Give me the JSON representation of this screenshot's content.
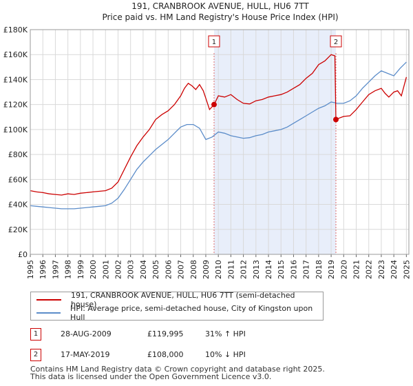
{
  "chart_data": {
    "type": "line",
    "title": "191, CRANBROOK AVENUE, HULL, HU6 7TT",
    "subtitle": "Price paid vs. HM Land Registry's House Price Index (HPI)",
    "xlim": [
      1995,
      2025.2
    ],
    "ylim": [
      0,
      180000
    ],
    "y_ticks": [
      0,
      20000,
      40000,
      60000,
      80000,
      100000,
      120000,
      140000,
      160000,
      180000
    ],
    "y_tick_labels": [
      "£0",
      "£20K",
      "£40K",
      "£60K",
      "£80K",
      "£100K",
      "£120K",
      "£140K",
      "£160K",
      "£180K"
    ],
    "x_tick_labels": [
      "1995",
      "1996",
      "1997",
      "1998",
      "1999",
      "2000",
      "2001",
      "2002",
      "2003",
      "2004",
      "2005",
      "2006",
      "2007",
      "2008",
      "2009",
      "2010",
      "2011",
      "2012",
      "2013",
      "2014",
      "2015",
      "2016",
      "2017",
      "2018",
      "2019",
      "2020",
      "2021",
      "2022",
      "2023",
      "2024",
      "2025"
    ],
    "shaded_region": [
      2009.66,
      2019.38
    ],
    "series": [
      {
        "name": "191, CRANBROOK AVENUE, HULL, HU6 7TT (semi-detached house)",
        "color": "#cc0000",
        "x": [
          1995.0,
          1995.5,
          1996.0,
          1996.5,
          1997.0,
          1997.5,
          1998.0,
          1998.5,
          1999.0,
          1999.5,
          2000.0,
          2000.5,
          2001.0,
          2001.5,
          2002.0,
          2002.5,
          2003.0,
          2003.5,
          2004.0,
          2004.5,
          2005.0,
          2005.5,
          2006.0,
          2006.5,
          2007.0,
          2007.3,
          2007.6,
          2007.9,
          2008.2,
          2008.5,
          2008.8,
          2009.0,
          2009.3,
          2009.66,
          2010.0,
          2010.5,
          2011.0,
          2011.5,
          2012.0,
          2012.5,
          2013.0,
          2013.5,
          2014.0,
          2014.5,
          2015.0,
          2015.5,
          2016.0,
          2016.5,
          2017.0,
          2017.5,
          2018.0,
          2018.5,
          2019.0,
          2019.3,
          2019.38,
          2019.6,
          2020.0,
          2020.5,
          2021.0,
          2021.5,
          2022.0,
          2022.5,
          2023.0,
          2023.3,
          2023.6,
          2024.0,
          2024.3,
          2024.6,
          2025.0
        ],
        "values": [
          51000,
          50000,
          49500,
          48500,
          48000,
          47500,
          48500,
          48000,
          49000,
          49500,
          50000,
          50500,
          51000,
          53000,
          58000,
          68000,
          78000,
          87000,
          94000,
          100000,
          108000,
          112000,
          115000,
          120000,
          127000,
          133000,
          137000,
          135000,
          132000,
          136000,
          131000,
          125000,
          116000,
          119995,
          127000,
          126000,
          128000,
          124000,
          121000,
          120500,
          123000,
          124000,
          126000,
          127000,
          128000,
          130000,
          133000,
          136000,
          141000,
          145000,
          152000,
          155000,
          160000,
          159000,
          108000,
          109000,
          110500,
          111000,
          116000,
          122000,
          128000,
          131000,
          133000,
          129000,
          126000,
          130000,
          131000,
          127000,
          142000
        ]
      },
      {
        "name": "HPI: Average price, semi-detached house, City of Kingston upon Hull",
        "color": "#5b8cc9",
        "x": [
          1995.0,
          1995.5,
          1996.0,
          1996.5,
          1997.0,
          1997.5,
          1998.0,
          1998.5,
          1999.0,
          1999.5,
          2000.0,
          2000.5,
          2001.0,
          2001.5,
          2002.0,
          2002.5,
          2003.0,
          2003.5,
          2004.0,
          2004.5,
          2005.0,
          2005.5,
          2006.0,
          2006.5,
          2007.0,
          2007.5,
          2008.0,
          2008.5,
          2009.0,
          2009.5,
          2010.0,
          2010.5,
          2011.0,
          2011.5,
          2012.0,
          2012.5,
          2013.0,
          2013.5,
          2014.0,
          2014.5,
          2015.0,
          2015.5,
          2016.0,
          2016.5,
          2017.0,
          2017.5,
          2018.0,
          2018.5,
          2019.0,
          2019.5,
          2020.0,
          2020.5,
          2021.0,
          2021.5,
          2022.0,
          2022.5,
          2023.0,
          2023.5,
          2024.0,
          2024.5,
          2025.0
        ],
        "values": [
          39000,
          38500,
          38000,
          37500,
          37000,
          36500,
          36500,
          36500,
          37000,
          37500,
          38000,
          38500,
          39000,
          41000,
          45000,
          52000,
          60000,
          68000,
          74000,
          79000,
          84000,
          88000,
          92000,
          97000,
          102000,
          104000,
          104000,
          101000,
          92000,
          94000,
          98000,
          97000,
          95000,
          94000,
          93000,
          93500,
          95000,
          96000,
          98000,
          99000,
          100000,
          102000,
          105000,
          108000,
          111000,
          114000,
          117000,
          119000,
          122000,
          121000,
          121000,
          123000,
          127000,
          133000,
          138000,
          143000,
          147000,
          145000,
          143000,
          149000,
          154000
        ]
      }
    ],
    "markers": [
      {
        "label": "1",
        "x": 2009.66,
        "y": 119995
      },
      {
        "label": "2",
        "x": 2019.38,
        "y": 108000
      }
    ]
  },
  "transactions": [
    {
      "num": "1",
      "date": "28-AUG-2009",
      "price": "£119,995",
      "change": "31% ↑ HPI"
    },
    {
      "num": "2",
      "date": "17-MAY-2019",
      "price": "£108,000",
      "change": "10% ↓ HPI"
    }
  ],
  "footer": {
    "line1": "Contains HM Land Registry data © Crown copyright and database right 2025.",
    "line2": "This data is licensed under the Open Government Licence v3.0."
  },
  "colors": {
    "price_line": "#cc0000",
    "hpi_line": "#5b8cc9",
    "shade": "#e8eefa",
    "grid": "#d9d9d9"
  }
}
